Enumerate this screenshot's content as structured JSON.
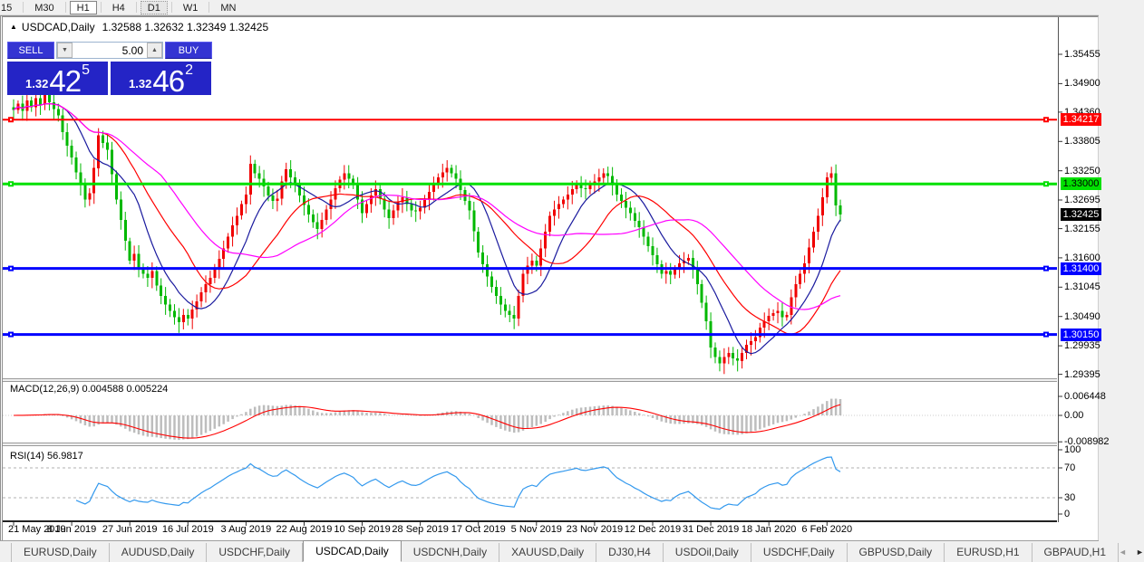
{
  "toolbar": {
    "timeframes": [
      "15",
      "M30",
      "H1",
      "H4",
      "D1",
      "W1",
      "MN"
    ],
    "active": "H1",
    "checked": "D1"
  },
  "chart_header": {
    "symbol_period": "USDCAD,Daily",
    "ohlc": "1.32588 1.32632 1.32349 1.32425"
  },
  "trade_panel": {
    "sell_label": "SELL",
    "buy_label": "BUY",
    "volume": "5.00",
    "sell_price": {
      "small": "1.32",
      "big": "42",
      "sup": "5"
    },
    "buy_price": {
      "small": "1.32",
      "big": "46",
      "sup": "2"
    }
  },
  "chart_data": {
    "type": "candlestick",
    "symbol": "USDCAD",
    "period": "Daily",
    "note": "OHLC estimated from pixels; opens equal previous close, wicks approximated",
    "price_axis": {
      "top": 1.359,
      "bottom": 1.2932
    },
    "y_ticks": [
      1.35455,
      1.349,
      1.3436,
      1.33805,
      1.3325,
      1.32695,
      1.32155,
      1.316,
      1.31045,
      1.3049,
      1.29935,
      1.29395
    ],
    "x_labels": [
      "21 May 2019",
      "8 Jun 2019",
      "27 Jun 2019",
      "16 Jul 2019",
      "3 Aug 2019",
      "22 Aug 2019",
      "10 Sep 2019",
      "28 Sep 2019",
      "17 Oct 2019",
      "5 Nov 2019",
      "23 Nov 2019",
      "12 Dec 2019",
      "31 Dec 2019",
      "18 Jan 2020",
      "6 Feb 2020"
    ],
    "open_first": 1.3445,
    "closes": [
      1.344,
      1.3452,
      1.3438,
      1.3458,
      1.3445,
      1.3462,
      1.345,
      1.3468,
      1.3455,
      1.3442,
      1.343,
      1.3398,
      1.3372,
      1.335,
      1.3322,
      1.3298,
      1.327,
      1.3282,
      1.333,
      1.3392,
      1.3378,
      1.3365,
      1.3318,
      1.327,
      1.3232,
      1.3192,
      1.3155,
      1.3168,
      1.3142,
      1.313,
      1.3122,
      1.3135,
      1.3108,
      1.3088,
      1.3072,
      1.306,
      1.3048,
      1.3038,
      1.3052,
      1.3045,
      1.3062,
      1.3078,
      1.3095,
      1.311,
      1.3122,
      1.314,
      1.3158,
      1.3178,
      1.32,
      1.3222,
      1.324,
      1.3262,
      1.328,
      1.3338,
      1.332,
      1.331,
      1.3295,
      1.3278,
      1.3268,
      1.3272,
      1.3305,
      1.3328,
      1.3312,
      1.3298,
      1.3278,
      1.326,
      1.3242,
      1.3228,
      1.3215,
      1.3232,
      1.3252,
      1.327,
      1.3292,
      1.3308,
      1.332,
      1.331,
      1.3298,
      1.327,
      1.3245,
      1.3262,
      1.3278,
      1.329,
      1.3272,
      1.3252,
      1.3235,
      1.325,
      1.3265,
      1.3275,
      1.3262,
      1.325,
      1.3248,
      1.3255,
      1.327,
      1.3285,
      1.33,
      1.3312,
      1.3322,
      1.333,
      1.332,
      1.331,
      1.3288,
      1.3268,
      1.325,
      1.321,
      1.317,
      1.3148,
      1.3125,
      1.3105,
      1.3088,
      1.3072,
      1.306,
      1.3052,
      1.3045,
      1.3088,
      1.313,
      1.3145,
      1.3155,
      1.3145,
      1.3178,
      1.321,
      1.324,
      1.3252,
      1.3262,
      1.327,
      1.328,
      1.329,
      1.33,
      1.3292,
      1.329,
      1.3298,
      1.3305,
      1.3312,
      1.332,
      1.3315,
      1.3298,
      1.328,
      1.3268,
      1.3255,
      1.3245,
      1.323,
      1.3218,
      1.32,
      1.3182,
      1.3165,
      1.3148,
      1.313,
      1.3135,
      1.3128,
      1.314,
      1.315,
      1.3155,
      1.316,
      1.3138,
      1.311,
      1.3075,
      1.304,
      1.299,
      1.2972,
      1.296,
      1.2972,
      1.298,
      1.297,
      1.2965,
      1.298,
      1.2995,
      1.3002,
      1.301,
      1.3028,
      1.304,
      1.305,
      1.3055,
      1.306,
      1.3048,
      1.3052,
      1.3085,
      1.311,
      1.313,
      1.315,
      1.318,
      1.321,
      1.324,
      1.3275,
      1.3312,
      1.332,
      1.3259,
      1.32425
    ],
    "hlines": [
      {
        "price": 1.34217,
        "label": "1.34217",
        "color": "#ff0000",
        "text": "#ffffff",
        "width": 2
      },
      {
        "price": 1.33,
        "label": "1.33000",
        "color": "#00e000",
        "text": "#000000",
        "width": 3
      },
      {
        "price": 1.314,
        "label": "1.31400",
        "color": "#0000ff",
        "text": "#ffffff",
        "width": 3
      },
      {
        "price": 1.3015,
        "label": "1.30150",
        "color": "#0000ff",
        "text": "#ffffff",
        "width": 3
      }
    ],
    "current_price": {
      "value": 1.32425,
      "label": "1.32425",
      "bg": "#000000",
      "fg": "#ffffff"
    },
    "ma": [
      {
        "period": 10,
        "color": "#1a1a9e"
      },
      {
        "period": 21,
        "color": "#ff0000"
      },
      {
        "period": 34,
        "color": "#ff00ff"
      }
    ],
    "colors": {
      "up": "#f00000",
      "down": "#00b800",
      "macd_hist": "#bdbdbd",
      "macd_signal": "#ff0000",
      "rsi": "#3399ee",
      "level_dash": "#b0b0b0"
    },
    "indicators": [
      {
        "name": "MACD(12,26,9)",
        "values": "0.004588 0.005224",
        "y_ticks": [
          {
            "label": "0.006448",
            "v": 0.006448
          },
          {
            "label": "0.00",
            "v": 0
          },
          {
            "label": "-0.008982",
            "v": -0.008982
          }
        ]
      },
      {
        "name": "RSI(14)",
        "values": "56.9817",
        "y_ticks": [
          {
            "label": "100",
            "v": 100
          },
          {
            "label": "70",
            "v": 70
          },
          {
            "label": "30",
            "v": 30
          },
          {
            "label": "0",
            "v": 0
          }
        ],
        "levels": [
          70,
          30
        ]
      }
    ]
  },
  "tabs": {
    "items": [
      "EURUSD,Daily",
      "AUDUSD,Daily",
      "USDCHF,Daily",
      "USDCAD,Daily",
      "USDCNH,Daily",
      "XAUUSD,Daily",
      "DJ30,H4",
      "USDOil,Daily",
      "USDCHF,Daily",
      "GBPUSD,Daily",
      "EURUSD,H1",
      "GBPAUD,H1"
    ],
    "active_index": 3
  }
}
